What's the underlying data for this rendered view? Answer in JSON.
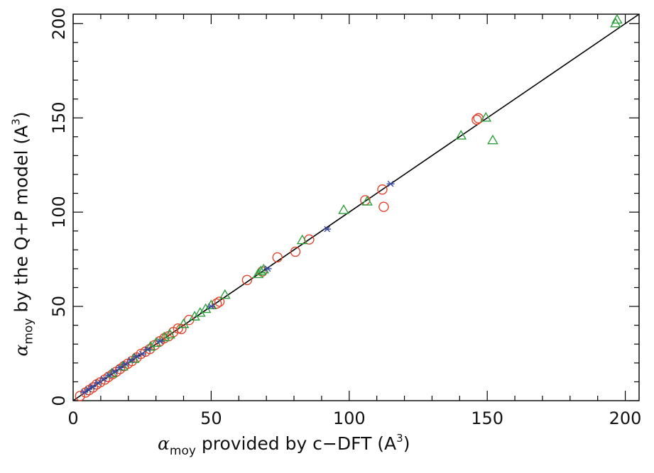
{
  "chart_data": {
    "type": "scatter",
    "xlabel": {
      "symbol": "α",
      "sub": "moy",
      "text": " provided by c−DFT (A",
      "sup": "3",
      "close": ")"
    },
    "ylabel": {
      "symbol": "α",
      "sub": "moy",
      "text": " by the Q+P model (A",
      "sup": "3",
      "close": ")"
    },
    "xlim": [
      0,
      205
    ],
    "ylim": [
      0,
      205
    ],
    "xticks": [
      0,
      50,
      100,
      150,
      200
    ],
    "yticks": [
      0,
      50,
      100,
      150,
      200
    ],
    "grid": false,
    "reference_line": {
      "x": [
        0,
        205
      ],
      "y": [
        0,
        205
      ],
      "color": "#000000"
    },
    "series": [
      {
        "marker": "circle",
        "color": "#e0452b",
        "points": [
          [
            2.5,
            2.5
          ],
          [
            4.5,
            4.3
          ],
          [
            5.8,
            5.6
          ],
          [
            7.2,
            7.0
          ],
          [
            8.5,
            8.6
          ],
          [
            9.8,
            9.7
          ],
          [
            11.5,
            11.2
          ],
          [
            12.8,
            12.6
          ],
          [
            14.2,
            14.0
          ],
          [
            15.6,
            15.3
          ],
          [
            17.0,
            16.8
          ],
          [
            18.4,
            18.3
          ],
          [
            19.8,
            19.6
          ],
          [
            21.3,
            21.0
          ],
          [
            23.0,
            22.9
          ],
          [
            24.6,
            24.8
          ],
          [
            26.2,
            26.0
          ],
          [
            27.8,
            27.4
          ],
          [
            29.6,
            29.5
          ],
          [
            31.4,
            31.5
          ],
          [
            33.0,
            33.1
          ],
          [
            34.6,
            34.2
          ],
          [
            36.3,
            36.4
          ],
          [
            38.0,
            38.3
          ],
          [
            39.2,
            38.0
          ],
          [
            42.0,
            42.8
          ],
          [
            52.0,
            51.5
          ],
          [
            53.0,
            52.5
          ],
          [
            63.0,
            64.0
          ],
          [
            68.5,
            68.5
          ],
          [
            74.0,
            76.0
          ],
          [
            80.5,
            79.0
          ],
          [
            85.5,
            85.5
          ],
          [
            105.8,
            106.3
          ],
          [
            112.0,
            112.0
          ],
          [
            112.5,
            102.8
          ],
          [
            146.2,
            149.0
          ],
          [
            146.8,
            149.8
          ]
        ]
      },
      {
        "marker": "triangle",
        "color": "#2e9f3e",
        "points": [
          [
            14.0,
            14.3
          ],
          [
            18.0,
            18.0
          ],
          [
            22.0,
            22.0
          ],
          [
            28.0,
            28.5
          ],
          [
            30.0,
            30.5
          ],
          [
            33.0,
            33.5
          ],
          [
            35.0,
            35.0
          ],
          [
            40.0,
            40.5
          ],
          [
            44.0,
            44.5
          ],
          [
            46.0,
            46.5
          ],
          [
            48.0,
            48.5
          ],
          [
            50.0,
            50.5
          ],
          [
            55.0,
            56.0
          ],
          [
            67.0,
            67.0
          ],
          [
            68.0,
            68.5
          ],
          [
            69.0,
            69.5
          ],
          [
            83.0,
            85.0
          ],
          [
            98.0,
            101.0
          ],
          [
            106.5,
            105.5
          ],
          [
            140.5,
            140.5
          ],
          [
            149.5,
            150.0
          ],
          [
            152.0,
            138.0
          ],
          [
            197.0,
            202.0
          ],
          [
            196.5,
            200.0
          ]
        ]
      },
      {
        "marker": "star",
        "color": "#3a4aa0",
        "points": [
          [
            4.0,
            4.5
          ],
          [
            5.5,
            6.0
          ],
          [
            7.0,
            7.5
          ],
          [
            9.0,
            9.5
          ],
          [
            11.0,
            11.5
          ],
          [
            13.0,
            13.5
          ],
          [
            15.0,
            15.5
          ],
          [
            17.0,
            17.5
          ],
          [
            19.0,
            19.5
          ],
          [
            21.0,
            21.5
          ],
          [
            23.0,
            23.5
          ],
          [
            25.0,
            24.8
          ],
          [
            27.0,
            27.2
          ],
          [
            31.5,
            31.5
          ],
          [
            50.0,
            50.0
          ],
          [
            70.5,
            70.0
          ],
          [
            92.0,
            91.0
          ],
          [
            115.0,
            115.0
          ]
        ]
      }
    ]
  }
}
